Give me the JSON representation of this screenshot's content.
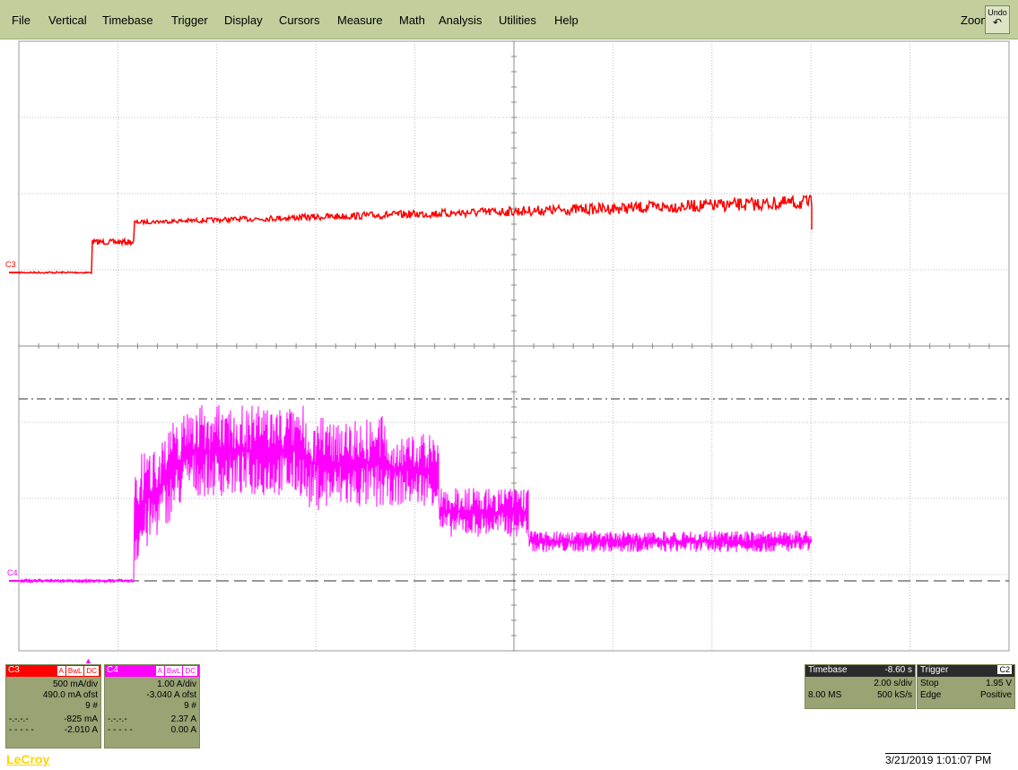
{
  "menu": {
    "items": [
      "File",
      "Vertical",
      "Timebase",
      "Trigger",
      "Display",
      "Cursors",
      "Measure",
      "Math",
      "Analysis",
      "Utilities",
      "Help"
    ],
    "zoom": "Zoom",
    "undo": "Undo",
    "undo_icon": "undo-arrow-icon"
  },
  "colors": {
    "menubar": "#c2cf9d",
    "panel": "#99a373",
    "c3": "#ff0000",
    "c4": "#ff00ff",
    "logo": "#ffd400"
  },
  "markers": {
    "c3": "C3",
    "c4": "C4"
  },
  "channels": [
    {
      "name": "C3",
      "color": "#ff0000",
      "flags": [
        "A",
        "BwL",
        "DC"
      ],
      "volts_div": "500 mA/div",
      "offset": "490.0 mA ofst",
      "count": "9 #",
      "cursor1_style": "-.-.-.-",
      "cursor1_value": "-825 mA",
      "cursor2_style": "- - - - -",
      "cursor2_value": "-2.010 A"
    },
    {
      "name": "C4",
      "color": "#ff00ff",
      "flags": [
        "A",
        "BwL",
        "DC"
      ],
      "volts_div": "1.00 A/div",
      "offset": "-3.040 A ofst",
      "count": "9 #",
      "cursor1_style": "-.-.-.-",
      "cursor1_value": "2.37 A",
      "cursor2_style": "- - - - -",
      "cursor2_value": "0.00 A"
    }
  ],
  "timebase": {
    "title": "Timebase",
    "delay": "-8.60 s",
    "per_div": "2.00 s/div",
    "samples": "8.00 MS",
    "rate": "500 kS/s"
  },
  "trigger": {
    "title": "Trigger",
    "source": "C2",
    "mode": "Stop",
    "level": "1.95 V",
    "type": "Edge",
    "slope": "Positive"
  },
  "logo": "LeCroy",
  "datetime": "3/21/2019 1:01:07 PM"
}
